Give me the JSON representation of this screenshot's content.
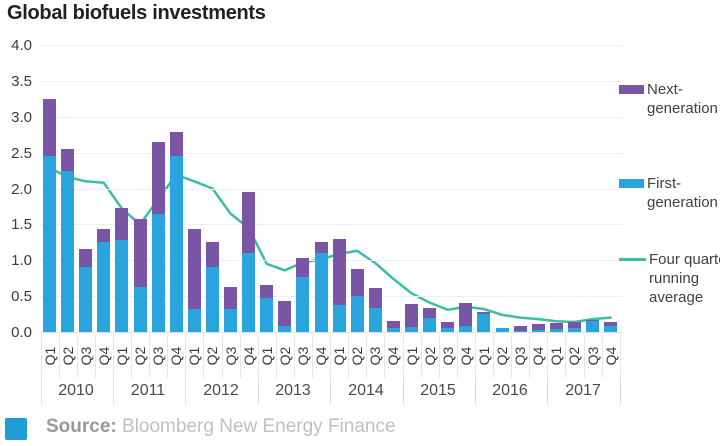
{
  "title": "Global biofuels investments",
  "legend": {
    "items": [
      {
        "label": "Next-\ngeneration",
        "swatch": "square",
        "color": "#7a55a5"
      },
      {
        "label": "First-\ngeneration",
        "swatch": "square",
        "color": "#2aa4dc"
      },
      {
        "label": "Four quarter\nrunning\naverage",
        "swatch": "line",
        "color": "#3dbca4"
      }
    ]
  },
  "source": {
    "label": "Source:",
    "text": "Bloomberg New Energy Finance"
  },
  "chart_data": {
    "type": "bar",
    "stacked": true,
    "title": "Global biofuels investments",
    "xlabel": "",
    "ylabel": "",
    "ylim": [
      0,
      4.0
    ],
    "ytick_labels": [
      "4.0",
      "3.5",
      "3.0",
      "2.5",
      "2.0",
      "1.5",
      "1.0",
      "0.5",
      "0.0"
    ],
    "grid": true,
    "legend_position": "right",
    "years": [
      "2010",
      "2011",
      "2012",
      "2013",
      "2014",
      "2015",
      "2016",
      "2017"
    ],
    "categories": [
      "Q1",
      "Q2",
      "Q3",
      "Q4",
      "Q1",
      "Q2",
      "Q3",
      "Q4",
      "Q1",
      "Q2",
      "Q3",
      "Q4",
      "Q1",
      "Q2",
      "Q3",
      "Q4",
      "Q1",
      "Q2",
      "Q3",
      "Q4",
      "Q1",
      "Q2",
      "Q3",
      "Q4",
      "Q1",
      "Q2",
      "Q3",
      "Q4",
      "Q1",
      "Q2",
      "Q3",
      "Q4"
    ],
    "series": [
      {
        "name": "First-generation",
        "role": "bar-bottom",
        "color": "#2aa4dc",
        "values": [
          2.45,
          2.25,
          0.9,
          1.25,
          1.28,
          0.63,
          1.65,
          2.45,
          0.32,
          0.9,
          0.32,
          1.1,
          0.48,
          0.08,
          0.76,
          1.1,
          0.38,
          0.5,
          0.34,
          0.05,
          0.07,
          0.19,
          0.06,
          0.08,
          0.25,
          0.05,
          0.02,
          0.03,
          0.04,
          0.05,
          0.16,
          0.08
        ]
      },
      {
        "name": "Next-generation",
        "role": "bar-top",
        "color": "#7a55a5",
        "values": [
          0.8,
          0.3,
          0.25,
          0.18,
          0.45,
          0.95,
          1.0,
          0.33,
          1.12,
          0.35,
          0.3,
          0.85,
          0.18,
          0.35,
          0.27,
          0.15,
          0.92,
          0.37,
          0.28,
          0.1,
          0.32,
          0.14,
          0.09,
          0.32,
          0.03,
          0.0,
          0.07,
          0.08,
          0.08,
          0.08,
          0.02,
          0.06
        ]
      },
      {
        "name": "Four quarter running average",
        "role": "line",
        "color": "#3dbca4",
        "values": [
          2.29,
          2.16,
          2.1,
          2.08,
          1.72,
          1.5,
          1.85,
          2.19,
          2.1,
          2.0,
          1.65,
          1.45,
          0.95,
          0.86,
          0.97,
          1.01,
          1.09,
          1.13,
          0.96,
          0.74,
          0.54,
          0.41,
          0.31,
          0.35,
          0.32,
          0.24,
          0.2,
          0.18,
          0.15,
          0.14,
          0.18,
          0.2
        ]
      }
    ]
  }
}
